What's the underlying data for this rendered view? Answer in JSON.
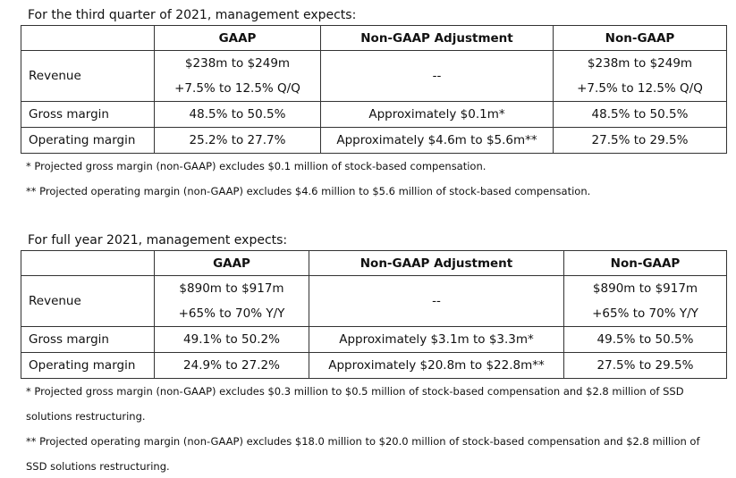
{
  "sections": [
    {
      "intro": "For the third quarter of 2021, management expects:",
      "headers": [
        "GAAP",
        "Non-GAAP Adjustment",
        "Non-GAAP"
      ],
      "rows": [
        {
          "label": "Revenue",
          "gaap": [
            "$238m to $249m",
            "+7.5% to 12.5% Q/Q"
          ],
          "adjustment": "--",
          "non_gaap": [
            "$238m to $249m",
            "+7.5% to 12.5% Q/Q"
          ]
        },
        {
          "label": "Gross margin",
          "gaap": [
            "48.5% to 50.5%"
          ],
          "adjustment": "Approximately $0.1m*",
          "non_gaap": [
            "48.5% to 50.5%"
          ]
        },
        {
          "label": "Operating margin",
          "gaap": [
            "25.2% to 27.7%"
          ],
          "adjustment": "Approximately $4.6m to $5.6m**",
          "non_gaap": [
            "27.5% to 29.5%"
          ]
        }
      ],
      "footnotes": [
        "* Projected gross margin (non-GAAP) excludes $0.1 million of stock-based compensation.",
        "** Projected operating margin (non-GAAP) excludes $4.6 million to $5.6 million of stock-based compensation."
      ]
    },
    {
      "intro": "For full year 2021, management expects:",
      "headers": [
        "GAAP",
        "Non-GAAP Adjustment",
        "Non-GAAP"
      ],
      "rows": [
        {
          "label": "Revenue",
          "gaap": [
            "$890m to $917m",
            "+65% to 70% Y/Y"
          ],
          "adjustment": "--",
          "non_gaap": [
            "$890m to $917m",
            "+65% to 70% Y/Y"
          ]
        },
        {
          "label": "Gross margin",
          "gaap": [
            "49.1% to 50.2%"
          ],
          "adjustment": "Approximately $3.1m to $3.3m*",
          "non_gaap": [
            "49.5% to 50.5%"
          ]
        },
        {
          "label": "Operating margin",
          "gaap": [
            "24.9% to 27.2%"
          ],
          "adjustment": "Approximately $20.8m to $22.8m**",
          "non_gaap": [
            "27.5% to 29.5%"
          ]
        }
      ],
      "footnotes": [
        "* Projected gross margin (non-GAAP) excludes $0.3 million to $0.5 million of stock-based compensation and $2.8 million of SSD solutions restructuring.",
        "** Projected operating margin (non-GAAP) excludes $18.0 million to $20.0 million of stock-based compensation and $2.8 million of SSD solutions restructuring."
      ]
    }
  ]
}
